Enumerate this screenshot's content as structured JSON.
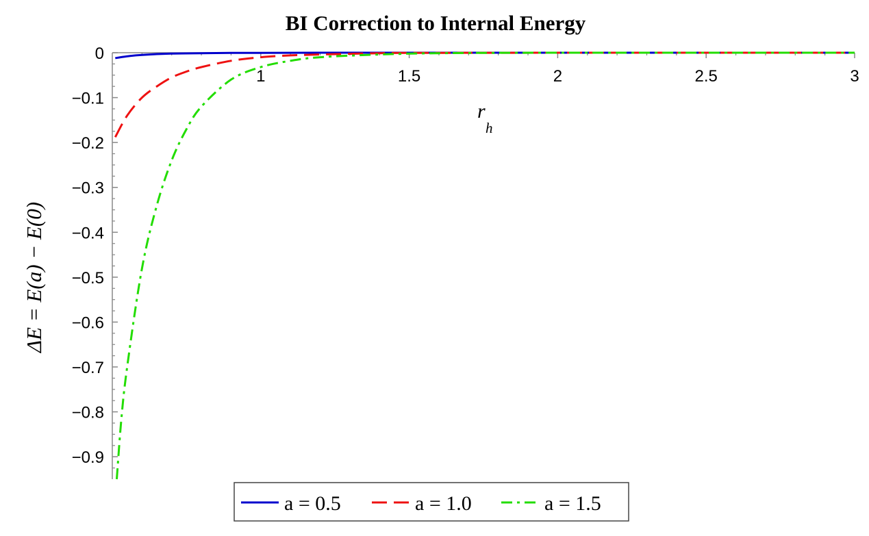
{
  "chart_data": {
    "type": "line",
    "title": "BI Correction to Internal Energy",
    "xlabel": "r",
    "xlabel_sub": "h",
    "ylabel": "ΔE = E(a) − E(0)",
    "xlim": [
      0.5,
      3
    ],
    "ylim": [
      -0.95,
      0
    ],
    "x_ticks": [
      1,
      1.5,
      2,
      2.5,
      3
    ],
    "x_tick_labels": [
      "1",
      "1.5",
      "2",
      "2.5",
      "3"
    ],
    "y_ticks": [
      0,
      -0.1,
      -0.2,
      -0.3,
      -0.4,
      -0.5,
      -0.6,
      -0.7,
      -0.8,
      -0.9
    ],
    "y_tick_labels": [
      "0",
      "−0.1",
      "−0.2",
      "−0.3",
      "−0.4",
      "−0.5",
      "−0.6",
      "−0.7",
      "−0.8",
      "−0.9"
    ],
    "grid": false,
    "x_axis_position": "y=0",
    "legend_position": "bottom",
    "series": [
      {
        "name": "a = 0.5",
        "color": "#0000cc",
        "dash": "solid",
        "x": [
          0.51,
          0.55,
          0.6,
          0.7,
          0.8,
          0.9,
          1.0,
          1.2,
          1.5,
          2.0,
          2.5,
          3.0
        ],
        "y": [
          -0.012,
          -0.008,
          -0.005,
          -0.002,
          -0.001,
          -0.0005,
          -0.0003,
          0,
          0,
          0,
          0,
          0
        ]
      },
      {
        "name": "a = 1.0",
        "color": "#ee1111",
        "dash": "dash",
        "x": [
          0.51,
          0.55,
          0.6,
          0.65,
          0.7,
          0.75,
          0.8,
          0.9,
          1.0,
          1.1,
          1.2,
          1.4,
          1.5,
          2.0,
          2.5,
          3.0
        ],
        "y": [
          -0.188,
          -0.14,
          -0.1,
          -0.075,
          -0.055,
          -0.042,
          -0.032,
          -0.018,
          -0.01,
          -0.006,
          -0.004,
          -0.001,
          -0.0005,
          0,
          0,
          0
        ]
      },
      {
        "name": "a = 1.5",
        "color": "#22dd00",
        "dash": "dashdot",
        "x": [
          0.515,
          0.53,
          0.55,
          0.6,
          0.65,
          0.7,
          0.75,
          0.8,
          0.9,
          1.0,
          1.1,
          1.2,
          1.4,
          1.6,
          2.0,
          2.5,
          3.0
        ],
        "y": [
          -0.95,
          -0.82,
          -0.7,
          -0.48,
          -0.34,
          -0.24,
          -0.17,
          -0.12,
          -0.06,
          -0.032,
          -0.018,
          -0.01,
          -0.004,
          -0.001,
          0,
          0,
          0
        ]
      }
    ]
  }
}
